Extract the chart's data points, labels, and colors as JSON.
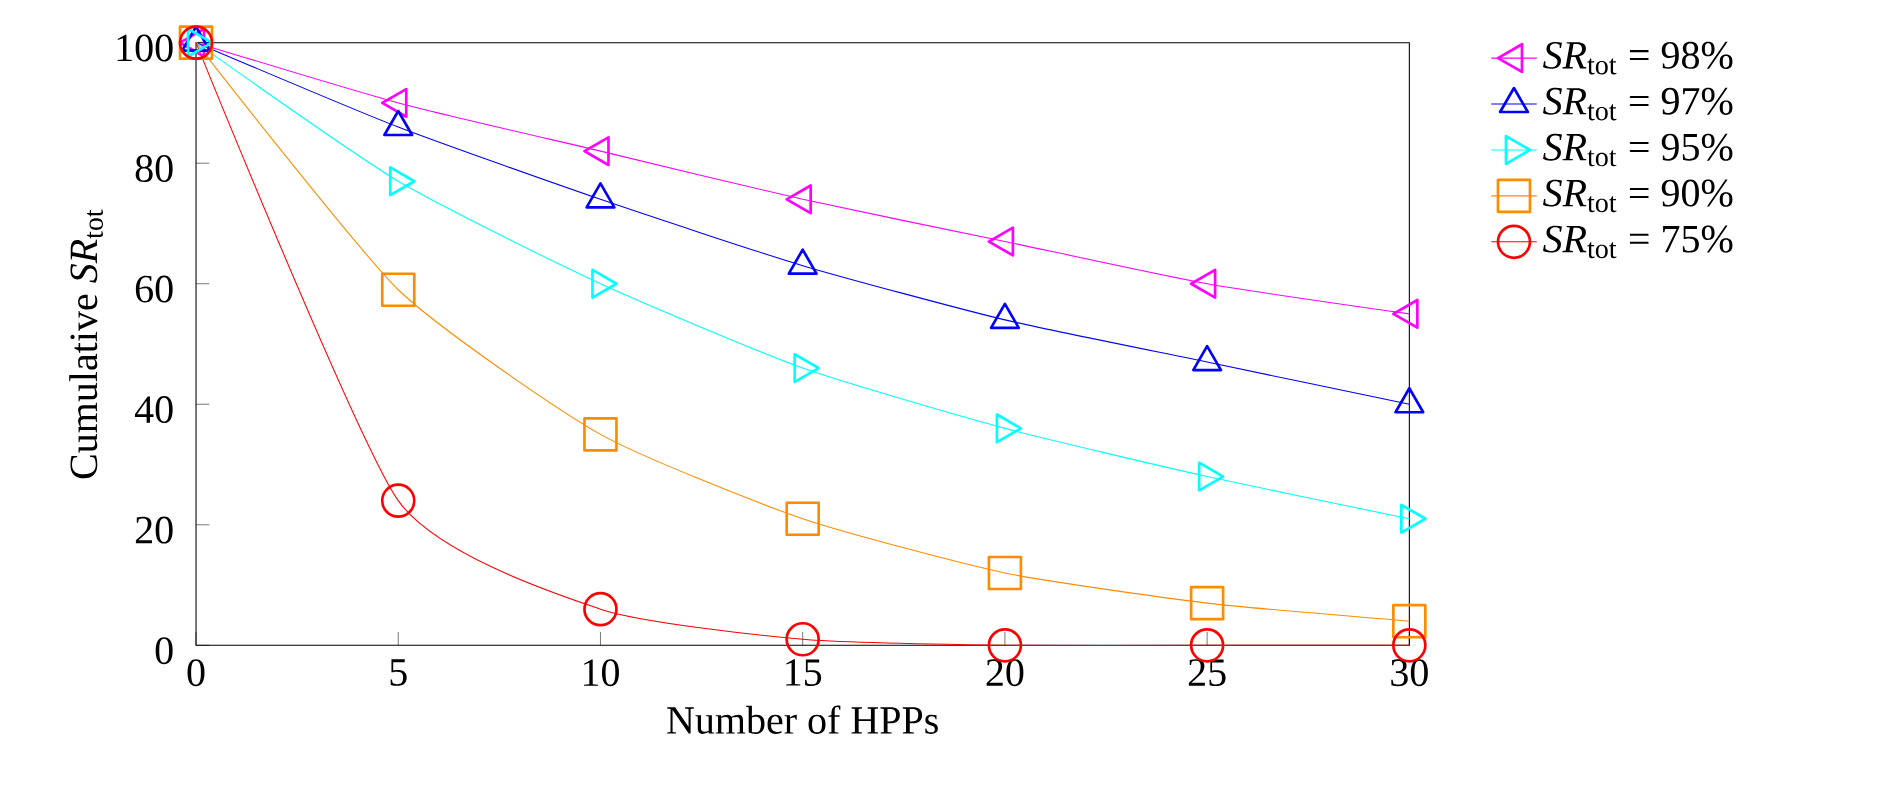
{
  "chart_data": {
    "type": "line",
    "xlabel": "Number of HPPs",
    "ylabel": "Cumulative *SR*$_{tot}$",
    "x": [
      0,
      5,
      10,
      15,
      20,
      25,
      30
    ],
    "series": [
      {
        "name": "*SR*$_{tot}$ = 98%",
        "color": "#ff00ff",
        "marker": "triangle",
        "values": [
          100,
          90,
          82,
          74,
          67,
          60,
          55
        ]
      },
      {
        "name": "*SR*$_{tot}$ = 97%",
        "color": "#0000ff",
        "marker": "triangle",
        "values": [
          100,
          86,
          74,
          63,
          54,
          47,
          40
        ]
      },
      {
        "name": "*SR*$_{tot}$ = 95%",
        "color": "#00ffff",
        "marker": "triangle",
        "values": [
          100,
          77,
          60,
          46,
          36,
          28,
          21
        ]
      },
      {
        "name": "*SR*$_{tot}$ = 90%",
        "color": "#ff8c00",
        "marker": "square",
        "values": [
          100,
          59,
          35,
          21,
          12,
          7,
          4
        ]
      },
      {
        "name": "*SR*$_{tot}$ = 75%",
        "color": "#ff0000",
        "marker": "circle",
        "values": [
          100,
          24,
          6,
          1,
          0,
          0,
          0
        ]
      }
    ],
    "xlim": [
      0,
      30
    ],
    "xticks": [
      0,
      5,
      10,
      15,
      20,
      25,
      30
    ],
    "ylim": [
      0,
      100
    ],
    "yticks": [
      0,
      20,
      40,
      60,
      80,
      100
    ],
    "grid": false,
    "legend": "right",
    "line_style": "solid"
  }
}
